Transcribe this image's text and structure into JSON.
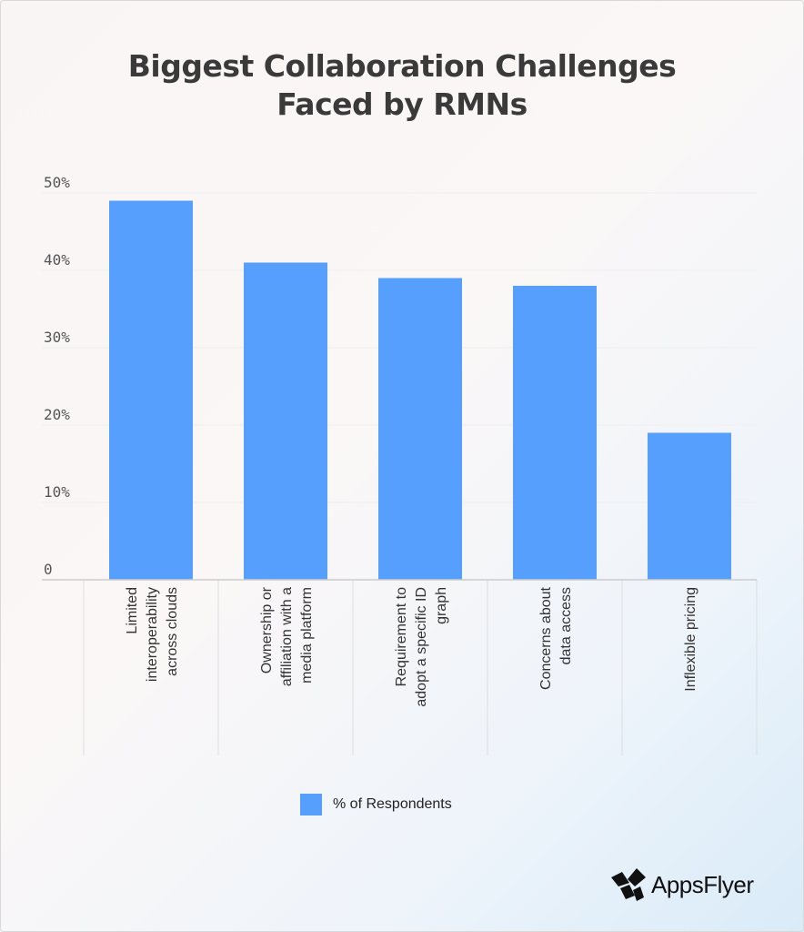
{
  "chart_data": {
    "type": "bar",
    "title": "Biggest Collaboration Challenges Faced by RMNs",
    "title_lines": [
      "Biggest Collaboration Challenges",
      "Faced by RMNs"
    ],
    "categories": [
      "Limited interoperability across clouds",
      "Ownership or affiliation with a media platform",
      "Requirement to adopt a specific ID graph",
      "Concerns about data access",
      "Inflexible pricing"
    ],
    "category_lines": [
      [
        "Limited",
        "interoperability",
        "across clouds"
      ],
      [
        "Ownership or",
        "affiliation with a",
        "media platform"
      ],
      [
        "Requirement to",
        "adopt a specific ID",
        "graph"
      ],
      [
        "Concerns about",
        "data access"
      ],
      [
        "Inflexible pricing"
      ]
    ],
    "series": [
      {
        "name": "% of Respondents",
        "values": [
          49,
          41,
          39,
          38,
          19
        ],
        "color": "#579ffd"
      }
    ],
    "ylim": [
      0,
      50
    ],
    "yticks": [
      0,
      10,
      20,
      30,
      40,
      50
    ],
    "ytick_labels": [
      "0",
      "10%",
      "20%",
      "30%",
      "40%",
      "50%"
    ],
    "xlabel": "",
    "ylabel": "",
    "grid": true,
    "legend": "bottom-center"
  },
  "brand": {
    "logo_text": "AppsFlyer"
  }
}
